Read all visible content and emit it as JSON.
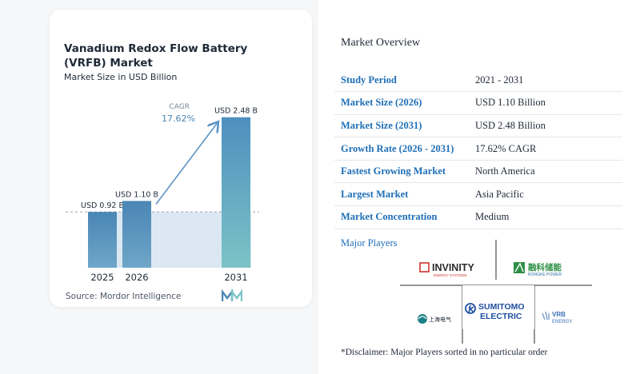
{
  "chart_data": {
    "type": "bar",
    "title": "Vanadium Redox Flow Battery (VRFB) Market",
    "subtitle": "Market Size in USD Billion",
    "categories": [
      "2025",
      "2026",
      "2031"
    ],
    "values": [
      0.92,
      1.1,
      2.48
    ],
    "value_labels": [
      "USD 0.92 B",
      "USD 1.10 B",
      "USD 2.48 B"
    ],
    "cagr_label": "CAGR",
    "cagr_value": "17.62%",
    "reference_line": 0.92,
    "ylim": [
      0,
      2.7
    ],
    "grid": false,
    "colors": {
      "bar_light": "#6fa6c8",
      "bar_dark": "#4a86b5",
      "tall_top": "#4f8fbf",
      "tall_bottom": "#7cc3c6",
      "shade": "#dbe8f3",
      "arrow": "#5b92c4",
      "cagr_text": "#4a86b5"
    }
  },
  "source": "Source: Mordor Intelligence",
  "overview": {
    "title": "Market Overview",
    "rows": [
      {
        "key": "Study Period",
        "value": "2021 - 2031"
      },
      {
        "key": "Market Size (2026)",
        "value": "USD 1.10 Billion"
      },
      {
        "key": "Market Size (2031)",
        "value": "USD 2.48 Billion"
      },
      {
        "key": "Growth Rate (2026 - 2031)",
        "value": "17.62% CAGR"
      },
      {
        "key": "Fastest Growing Market",
        "value": "North America"
      },
      {
        "key": "Largest Market",
        "value": "Asia Pacific"
      },
      {
        "key": "Market Concentration",
        "value": "Medium"
      }
    ]
  },
  "players": {
    "title": "Major Players",
    "logos": [
      {
        "name": "INVINITY",
        "sub": "ENERGY SYSTEMS",
        "icon": "invinity-logo"
      },
      {
        "name": "融科储能",
        "sub": "RONGKE POWER",
        "icon": "rongke-logo"
      },
      {
        "name": "上海电气",
        "sub": "",
        "icon": "shanghai-electric-logo"
      },
      {
        "name": "SUMITOMO",
        "sub": "ELECTRIC",
        "icon": "sumitomo-logo"
      },
      {
        "name": "VRB",
        "sub": "ENERGY",
        "icon": "vrb-energy-logo"
      }
    ]
  },
  "disclaimer": "*Disclaimer: Major Players sorted in no particular order"
}
